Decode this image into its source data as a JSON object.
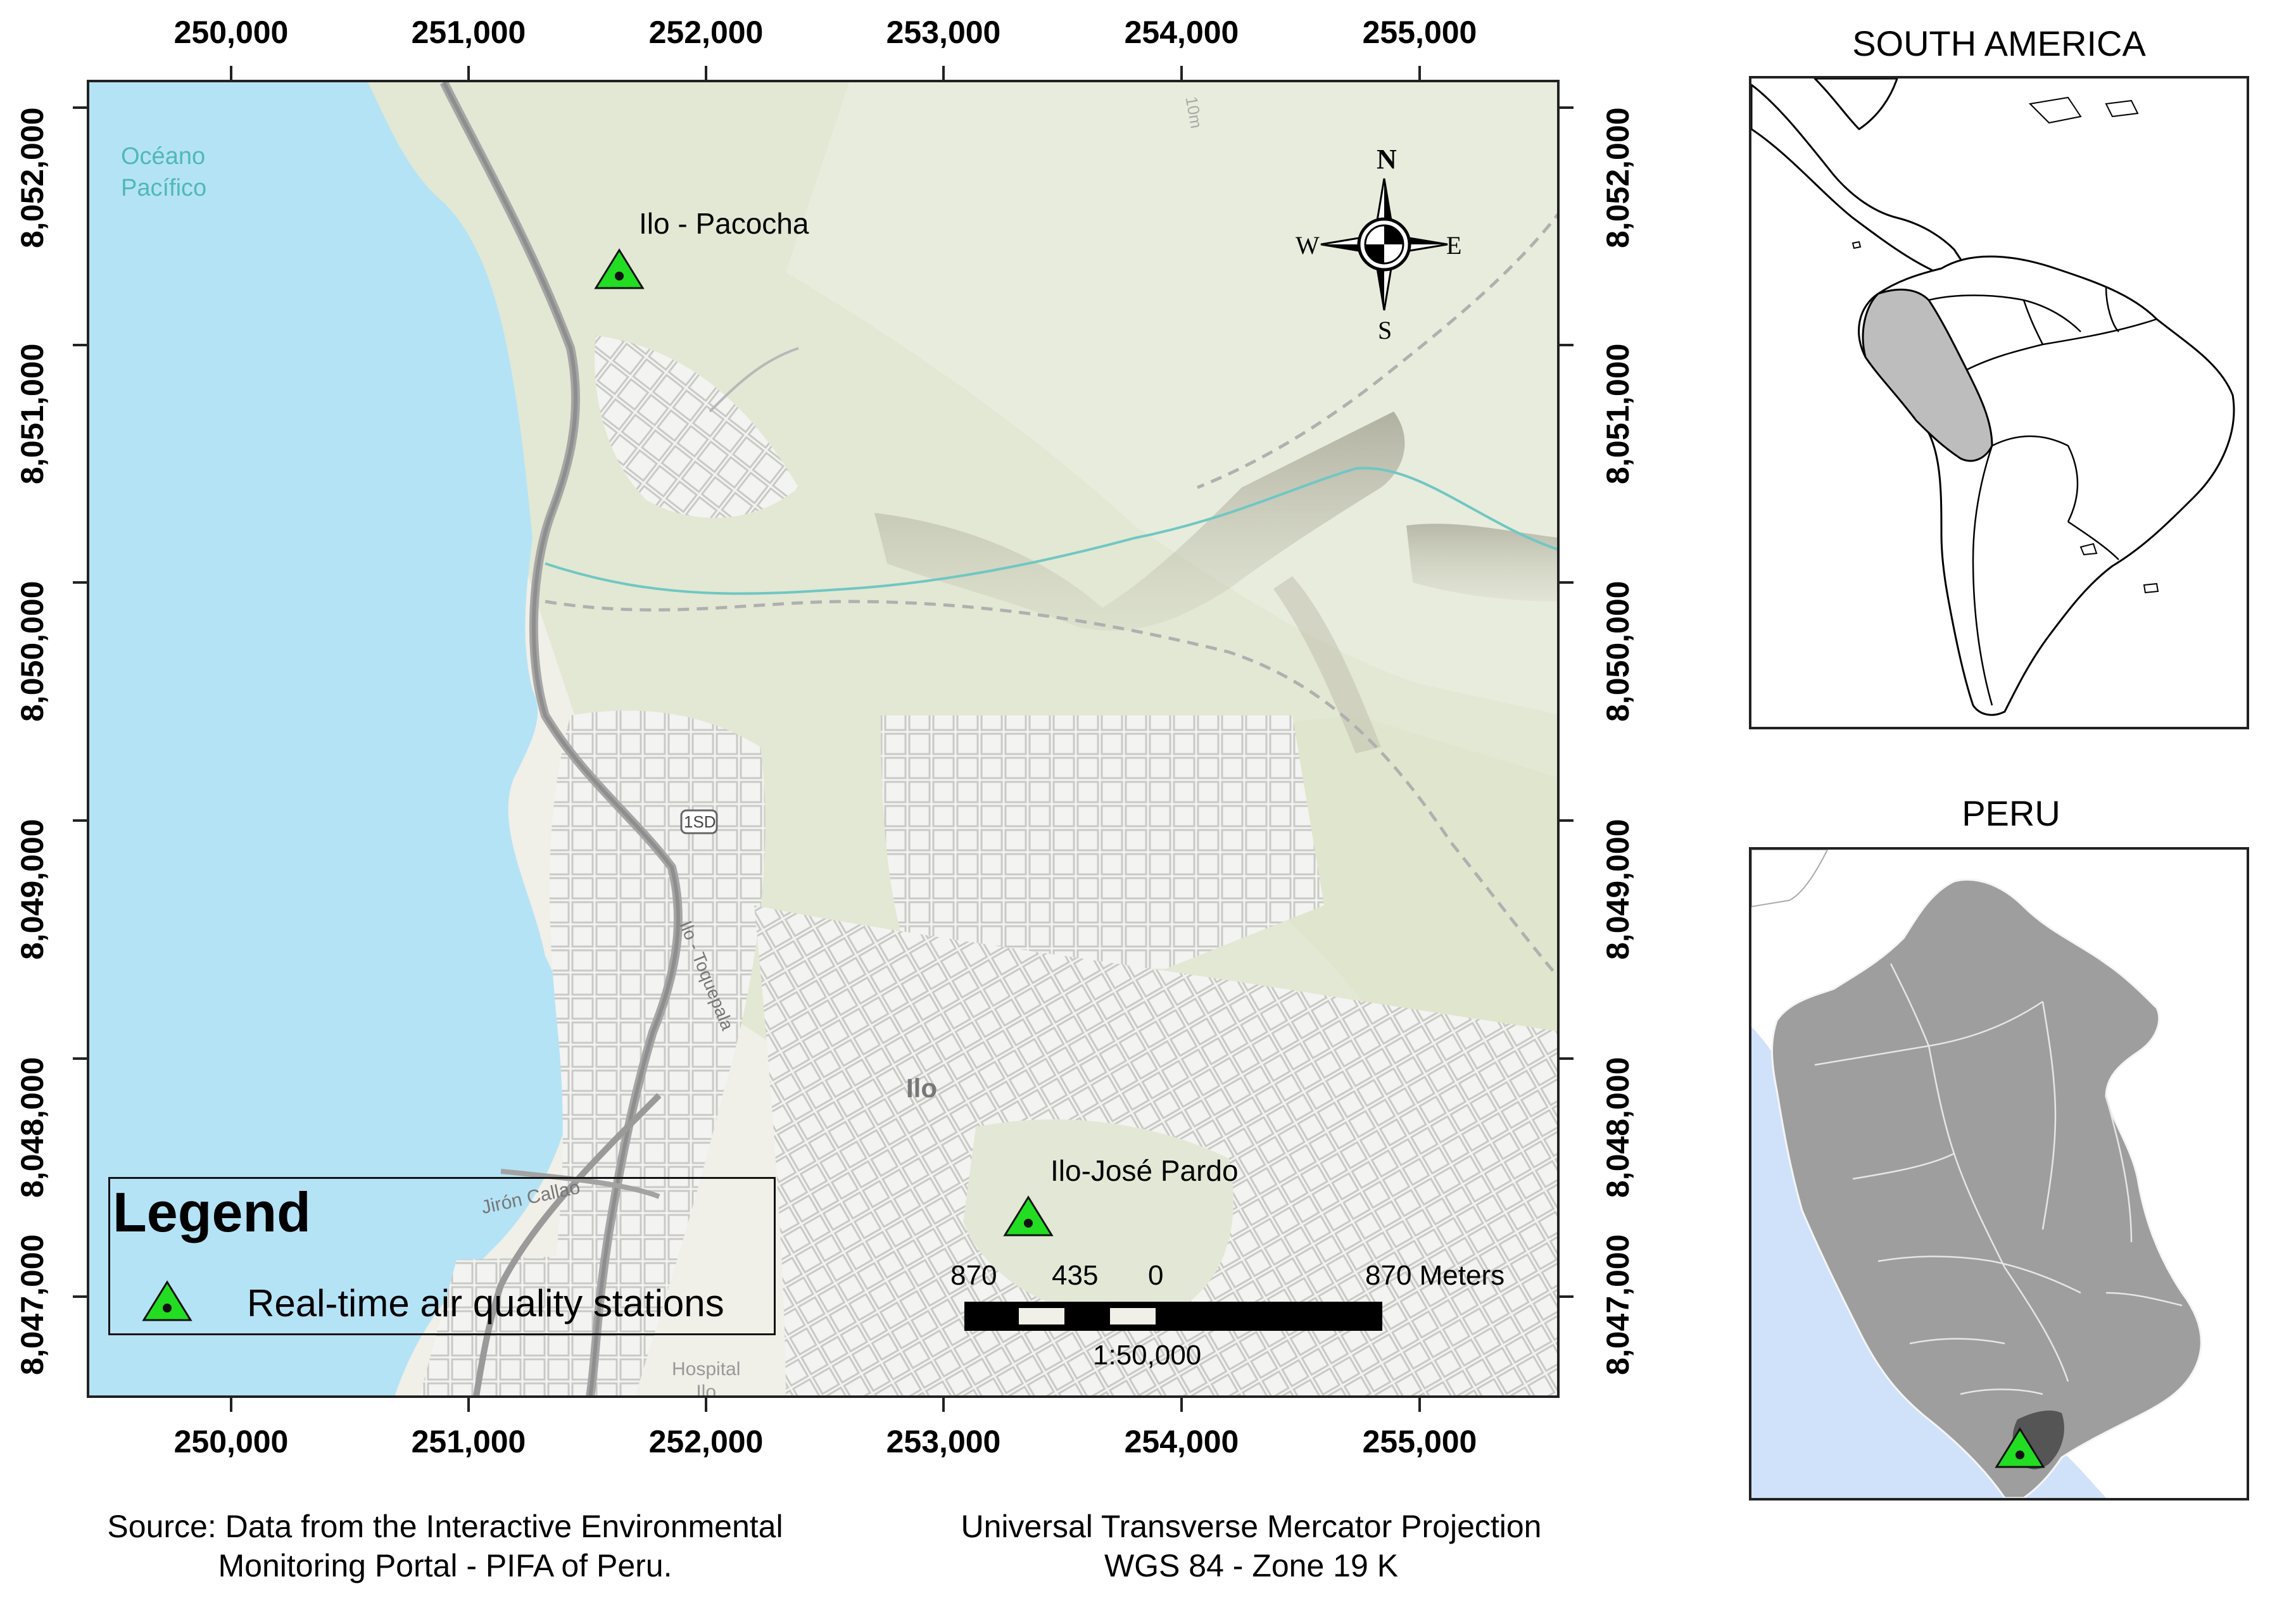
{
  "main_map": {
    "x_ticks": [
      "250,000",
      "251,000",
      "252,000",
      "253,000",
      "254,000",
      "255,000"
    ],
    "y_ticks": [
      "8,052,000",
      "8,051,000",
      "8,050,000",
      "8,049,000",
      "8,048,000",
      "8,047,000"
    ],
    "labels": {
      "ocean_line1": "Océano",
      "ocean_line2": "Pacífico",
      "city": "Ilo",
      "road_shield": "1SD",
      "street_1": "Jirón Callao",
      "street_2": "Ilo - Toquepala",
      "hospital_line1": "Hospital",
      "hospital_line2": "Ilo",
      "contour": "10m"
    },
    "stations": [
      {
        "name": "Ilo - Pacocha"
      },
      {
        "name": "Ilo-José Pardo"
      }
    ],
    "north_arrow": {
      "n": "N",
      "s": "S",
      "e": "E",
      "w": "W",
      "icon": "compass-rose-icon"
    },
    "scale_bar": {
      "labels": [
        "870",
        "435",
        "0",
        "870 Meters"
      ],
      "ratio": "1:50,000"
    },
    "colors": {
      "sea": "#b5e3f6",
      "land": "#f1f0ea",
      "vegetation": "#dfe7cf",
      "station": "#22dd22"
    }
  },
  "legend": {
    "title": "Legend",
    "item": "Real-time air quality stations",
    "icon": "station-triangle-icon"
  },
  "inset_south_america": {
    "title": "SOUTH AMERICA",
    "highlight": "Peru",
    "highlight_color": "#bdbdbd"
  },
  "inset_peru": {
    "title": "PERU",
    "country_color": "#9e9e9e",
    "sea_color": "#cfe2fa",
    "region_color": "#555555"
  },
  "footer": {
    "source_line1": "Source: Data from the Interactive Environmental",
    "source_line2": "Monitoring Portal - PIFA of Peru.",
    "projection_line1": "Universal Transverse Mercator Projection",
    "projection_line2": "WGS 84 - Zone 19 K"
  }
}
